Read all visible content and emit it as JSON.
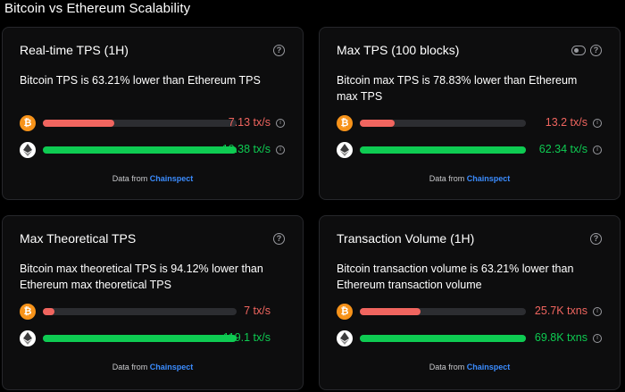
{
  "page": {
    "title": "Bitcoin vs Ethereum Scalability"
  },
  "source": {
    "prefix": "Data from",
    "name": "Chainspect"
  },
  "colors": {
    "btc": "#f7931a",
    "negative": "#f0655f",
    "positive": "#0ecb52",
    "link": "#3b8cff"
  },
  "cards": [
    {
      "title": "Real-time TPS (1H)",
      "description": "Bitcoin TPS is 63.21% lower than Ethereum TPS",
      "btc": {
        "value": "7.13 tx/s",
        "fraction": 0.368
      },
      "eth": {
        "value": "19.38 tx/s",
        "fraction": 1.0
      }
    },
    {
      "title": "Max TPS (100 blocks)",
      "description": "Bitcoin max TPS is 78.83% lower than Ethereum max TPS",
      "btc": {
        "value": "13.2 tx/s",
        "fraction": 0.212
      },
      "eth": {
        "value": "62.34 tx/s",
        "fraction": 1.0
      }
    },
    {
      "title": "Max Theoretical TPS",
      "description": "Bitcoin max theoretical TPS is 94.12% lower than Ethereum max theoretical TPS",
      "btc": {
        "value": "7 tx/s",
        "fraction": 0.059
      },
      "eth": {
        "value": "119.1 tx/s",
        "fraction": 1.0
      }
    },
    {
      "title": "Transaction Volume (1H)",
      "description": "Bitcoin transaction volume is 63.21% lower than Ethereum transaction volume",
      "btc": {
        "value": "25.7K txns",
        "fraction": 0.368
      },
      "eth": {
        "value": "69.8K txns",
        "fraction": 1.0
      }
    }
  ]
}
